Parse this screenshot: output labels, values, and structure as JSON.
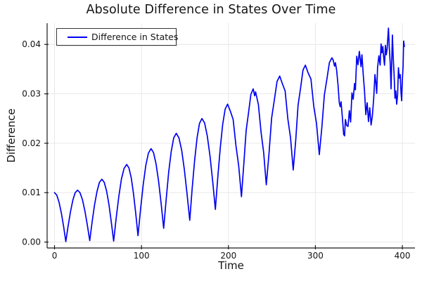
{
  "title": "Absolute Difference in States Over Time",
  "legend": {
    "label": "Difference in States"
  },
  "colors": {
    "line": "#0000f2",
    "grid": "#e6e6e6",
    "axis": "#1a1a1a",
    "text": "#141414"
  },
  "chart_data": {
    "type": "line",
    "title": "Absolute Difference in States Over Time",
    "xlabel": "Time",
    "ylabel": "Difference",
    "xlim": [
      -8.5,
      414.5
    ],
    "ylim": [
      -0.0012,
      0.0443
    ],
    "xticks": [
      0,
      100,
      200,
      300,
      400
    ],
    "ytick_values": [
      0.0,
      0.01,
      0.02,
      0.03,
      0.04
    ],
    "ytick_labels": [
      "0.00",
      "0.01",
      "0.02",
      "0.03",
      "0.04"
    ],
    "grid": true,
    "legend_position": "top-left",
    "series": [
      {
        "name": "Difference in States",
        "color": "#0000f2",
        "points": [
          [
            0,
            0.01
          ],
          [
            2.6,
            0.0095
          ],
          [
            5.2,
            0.0081
          ],
          [
            7.8,
            0.0059
          ],
          [
            10.4,
            0.0032
          ],
          [
            13,
            0.0001
          ],
          [
            15.7,
            0.0033
          ],
          [
            18.4,
            0.0062
          ],
          [
            21.1,
            0.0085
          ],
          [
            23.8,
            0.01
          ],
          [
            26.5,
            0.0105
          ],
          [
            29.3,
            0.01
          ],
          [
            32.1,
            0.0086
          ],
          [
            34.9,
            0.0063
          ],
          [
            37.7,
            0.0035
          ],
          [
            40.5,
            0.0003
          ],
          [
            43.3,
            0.0041
          ],
          [
            46.1,
            0.0076
          ],
          [
            48.9,
            0.0103
          ],
          [
            51.7,
            0.0121
          ],
          [
            54.5,
            0.0127
          ],
          [
            57.2,
            0.0121
          ],
          [
            59.9,
            0.0103
          ],
          [
            62.6,
            0.0076
          ],
          [
            65.3,
            0.0041
          ],
          [
            68,
            0.0002
          ],
          [
            71,
            0.005
          ],
          [
            74,
            0.0093
          ],
          [
            77,
            0.0128
          ],
          [
            80,
            0.0149
          ],
          [
            83,
            0.0157
          ],
          [
            85.6,
            0.015
          ],
          [
            88.2,
            0.013
          ],
          [
            90.8,
            0.0098
          ],
          [
            93.4,
            0.0058
          ],
          [
            96,
            0.0013
          ],
          [
            99,
            0.0067
          ],
          [
            102,
            0.0116
          ],
          [
            105,
            0.0155
          ],
          [
            108,
            0.018
          ],
          [
            111,
            0.0189
          ],
          [
            113.9,
            0.0181
          ],
          [
            116.8,
            0.0158
          ],
          [
            119.7,
            0.0123
          ],
          [
            122.6,
            0.0078
          ],
          [
            125.5,
            0.0028
          ],
          [
            128.4,
            0.0087
          ],
          [
            131.3,
            0.0141
          ],
          [
            134.2,
            0.0183
          ],
          [
            137.1,
            0.0211
          ],
          [
            140,
            0.022
          ],
          [
            143.1,
            0.0211
          ],
          [
            146.2,
            0.0186
          ],
          [
            149.3,
            0.0147
          ],
          [
            152.4,
            0.0098
          ],
          [
            155.5,
            0.0044
          ],
          [
            158.3,
            0.0108
          ],
          [
            161.1,
            0.0165
          ],
          [
            163.9,
            0.0211
          ],
          [
            166.7,
            0.024
          ],
          [
            169.5,
            0.025
          ],
          [
            172.6,
            0.0241
          ],
          [
            175.7,
            0.0215
          ],
          [
            178.8,
            0.0174
          ],
          [
            181.9,
            0.0123
          ],
          [
            185,
            0.0066
          ],
          [
            187.8,
            0.0132
          ],
          [
            190.6,
            0.0191
          ],
          [
            193.4,
            0.0238
          ],
          [
            196.2,
            0.0269
          ],
          [
            199,
            0.0279
          ],
          [
            202.2,
            0.0265
          ],
          [
            205.4,
            0.0248
          ],
          [
            208.6,
            0.0196
          ],
          [
            211.8,
            0.0154
          ],
          [
            215,
            0.0092
          ],
          [
            217.7,
            0.0159
          ],
          [
            220.4,
            0.0226
          ],
          [
            223.1,
            0.0262
          ],
          [
            225.8,
            0.0299
          ],
          [
            228.5,
            0.031
          ],
          [
            230.2,
            0.0296
          ],
          [
            231.2,
            0.0304
          ],
          [
            234.5,
            0.0278
          ],
          [
            237.5,
            0.0222
          ],
          [
            240.5,
            0.0181
          ],
          [
            243.5,
            0.0116
          ],
          [
            246.6,
            0.0178
          ],
          [
            249.7,
            0.0251
          ],
          [
            252.8,
            0.0288
          ],
          [
            255.9,
            0.0325
          ],
          [
            259,
            0.0336
          ],
          [
            262.1,
            0.032
          ],
          [
            265.2,
            0.0306
          ],
          [
            268.3,
            0.025
          ],
          [
            271.4,
            0.0211
          ],
          [
            274.5,
            0.0146
          ],
          [
            277.3,
            0.0205
          ],
          [
            280.1,
            0.0277
          ],
          [
            282.9,
            0.0311
          ],
          [
            285.7,
            0.0348
          ],
          [
            288.5,
            0.0358
          ],
          [
            291.7,
            0.0342
          ],
          [
            294.9,
            0.033
          ],
          [
            298.1,
            0.0275
          ],
          [
            301.3,
            0.024
          ],
          [
            304.5,
            0.0177
          ],
          [
            307.4,
            0.0232
          ],
          [
            310.3,
            0.0298
          ],
          [
            313.2,
            0.033
          ],
          [
            316.1,
            0.0363
          ],
          [
            319,
            0.0373
          ],
          [
            320.5,
            0.0368
          ],
          [
            322,
            0.0356
          ],
          [
            323,
            0.0363
          ],
          [
            324.5,
            0.0347
          ],
          [
            326,
            0.0318
          ],
          [
            327.5,
            0.0282
          ],
          [
            328.5,
            0.0274
          ],
          [
            329.5,
            0.0284
          ],
          [
            331,
            0.0252
          ],
          [
            332.5,
            0.0218
          ],
          [
            333.5,
            0.0215
          ],
          [
            334.5,
            0.0248
          ],
          [
            336,
            0.0236
          ],
          [
            337.5,
            0.0234
          ],
          [
            339,
            0.0266
          ],
          [
            340.5,
            0.0243
          ],
          [
            342,
            0.0302
          ],
          [
            343.5,
            0.0289
          ],
          [
            345,
            0.0321
          ],
          [
            346,
            0.0308
          ],
          [
            347.5,
            0.0376
          ],
          [
            349,
            0.0359
          ],
          [
            350.5,
            0.0386
          ],
          [
            351.5,
            0.0371
          ],
          [
            352.5,
            0.0355
          ],
          [
            353.5,
            0.0379
          ],
          [
            355,
            0.034
          ],
          [
            356.5,
            0.0305
          ],
          [
            358,
            0.0258
          ],
          [
            359.5,
            0.0282
          ],
          [
            361,
            0.0244
          ],
          [
            362.5,
            0.0272
          ],
          [
            364,
            0.0237
          ],
          [
            365.5,
            0.0255
          ],
          [
            367,
            0.029
          ],
          [
            368.5,
            0.0339
          ],
          [
            369.5,
            0.0322
          ],
          [
            370.5,
            0.0301
          ],
          [
            371.5,
            0.0353
          ],
          [
            373,
            0.0377
          ],
          [
            374.5,
            0.0358
          ],
          [
            375.5,
            0.0401
          ],
          [
            376.5,
            0.0383
          ],
          [
            377.5,
            0.0396
          ],
          [
            378.5,
            0.0374
          ],
          [
            379.5,
            0.0358
          ],
          [
            380.5,
            0.0398
          ],
          [
            381.5,
            0.0379
          ],
          [
            382.5,
            0.0391
          ],
          [
            384,
            0.0433
          ],
          [
            385,
            0.0394
          ],
          [
            386,
            0.0362
          ],
          [
            387,
            0.031
          ],
          [
            388.5,
            0.0419
          ],
          [
            389.5,
            0.0373
          ],
          [
            390.5,
            0.034
          ],
          [
            391.5,
            0.0291
          ],
          [
            392.5,
            0.0306
          ],
          [
            393.5,
            0.0279
          ],
          [
            394.5,
            0.0298
          ],
          [
            395.5,
            0.0353
          ],
          [
            396.5,
            0.0332
          ],
          [
            397.5,
            0.0339
          ],
          [
            398.5,
            0.0302
          ],
          [
            399.2,
            0.0286
          ],
          [
            400,
            0.033
          ],
          [
            400.8,
            0.0355
          ],
          [
            401.5,
            0.0407
          ],
          [
            402.3,
            0.0396
          ]
        ]
      }
    ]
  }
}
